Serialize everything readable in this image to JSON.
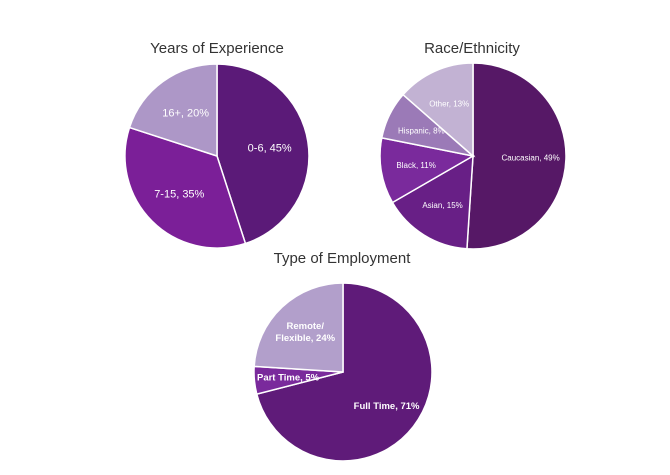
{
  "chart_data": [
    {
      "type": "pie",
      "title": "Years of Experience",
      "slices": [
        {
          "label": "0-6, 45%",
          "name": "0-6",
          "value": 45,
          "color": "#5b1a78"
        },
        {
          "label": "7-15, 35%",
          "name": "7-15",
          "value": 35,
          "color": "#7b1f98"
        },
        {
          "label": "16+, 20%",
          "name": "16+",
          "value": 20,
          "color": "#ad97c7"
        }
      ]
    },
    {
      "type": "pie",
      "title": "Race/Ethnicity",
      "slices": [
        {
          "label": "Caucasian, 49%",
          "name": "Caucasian",
          "value": 49,
          "color": "#561866"
        },
        {
          "label": "Asian, 15%",
          "name": "Asian",
          "value": 15,
          "color": "#681f86"
        },
        {
          "label": "Black, 11%",
          "name": "Black",
          "value": 11,
          "color": "#7a2a9c"
        },
        {
          "label": "Hispanic, 8%",
          "name": "Hispanic",
          "value": 8,
          "color": "#9b7ab7"
        },
        {
          "label": "Other, 13%",
          "name": "Other",
          "value": 13,
          "color": "#c2b2d3"
        }
      ]
    },
    {
      "type": "pie",
      "title": "Type of Employment",
      "slices": [
        {
          "label": "Full Time, 71%",
          "name": "Full Time",
          "value": 71,
          "color": "#5f1b79"
        },
        {
          "label": "Part Time, 5%",
          "name": "Part Time",
          "value": 5,
          "color": "#7a2a9c"
        },
        {
          "label": "Remote/\nFlexible, 24%",
          "name": "Remote/Flexible",
          "value": 24,
          "color": "#b29fcb"
        }
      ]
    }
  ]
}
